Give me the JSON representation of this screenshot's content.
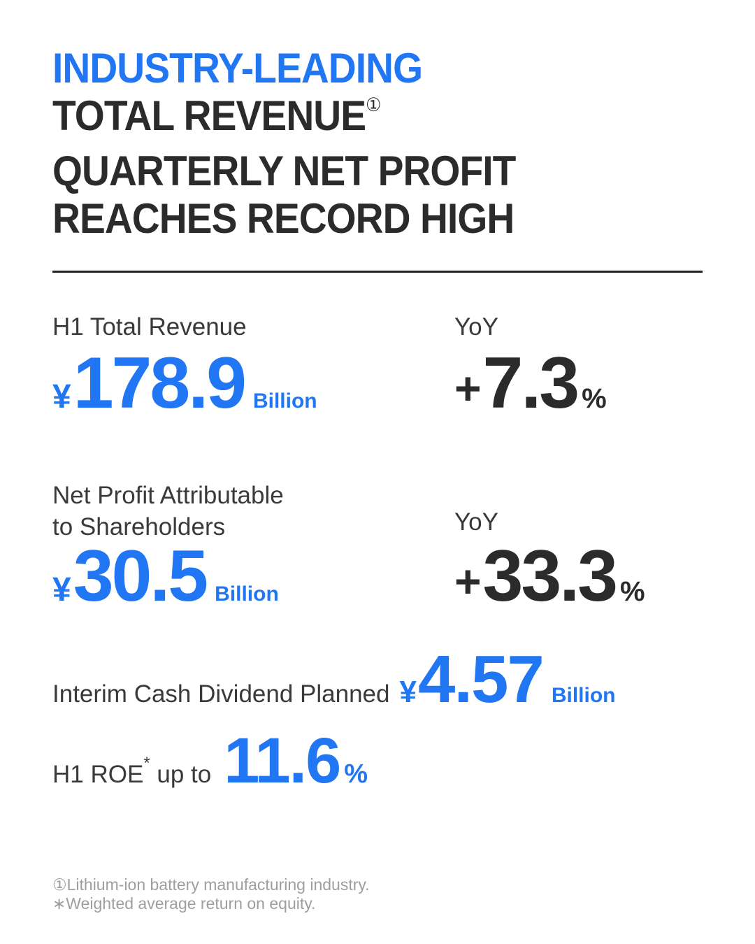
{
  "colors": {
    "accent_blue": "#2176F3",
    "dark_text": "#2B2B2B",
    "label_text": "#3A3A3A",
    "footnote_gray": "#9E9E9E",
    "divider": "#222222",
    "background": "#FFFFFF"
  },
  "title": {
    "line1": "INDUSTRY-LEADING",
    "line2": "TOTAL REVENUE",
    "line2_sup": "①",
    "line3": "QUARTERLY NET PROFIT",
    "line4": "REACHES RECORD HIGH"
  },
  "metrics": {
    "revenue": {
      "label": "H1 Total Revenue",
      "currency": "¥",
      "value": "178.9",
      "unit": "Billion"
    },
    "revenue_yoy": {
      "label": "YoY",
      "sign": "+",
      "value": "7.3",
      "unit": "%"
    },
    "net_profit": {
      "label_line1": "Net Profit Attributable",
      "label_line2": "to Shareholders",
      "currency": "¥",
      "value": "30.5",
      "unit": "Billion"
    },
    "net_profit_yoy": {
      "label": "YoY",
      "sign": "+",
      "value": "33.3",
      "unit": "%"
    },
    "dividend": {
      "label": "Interim Cash Dividend Planned",
      "currency": "¥",
      "value": "4.57",
      "unit": "Billion"
    },
    "roe": {
      "label_prefix": "H1 ROE",
      "label_sup": "*",
      "label_suffix": "up to",
      "value": "11.6",
      "unit": "%"
    }
  },
  "footnotes": {
    "line1": "①Lithium-ion battery manufacturing industry.",
    "line2": "∗Weighted average return on equity."
  }
}
